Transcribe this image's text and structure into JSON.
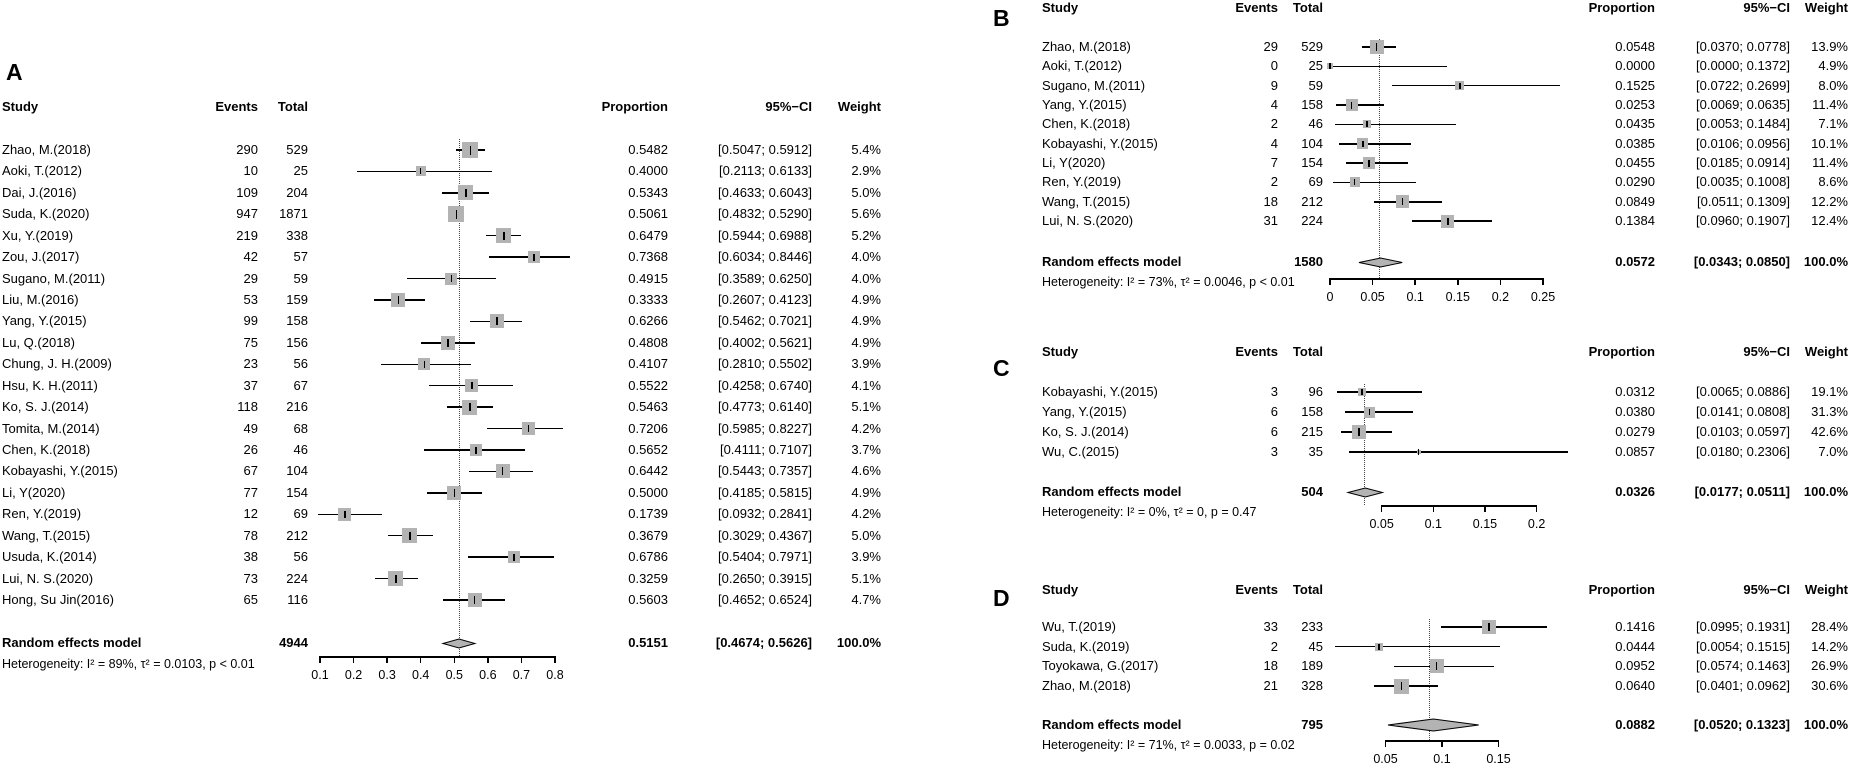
{
  "figure_title": "",
  "colors": {
    "background": "#ffffff",
    "text": "#000000",
    "ci_line": "#000000",
    "weight_square": "#b3b3b3",
    "diamond_fill": "#b3b3b3",
    "diamond_stroke": "#000000",
    "null_line": "#444444"
  },
  "chart_data": [
    {
      "panel": "A",
      "type": "forest",
      "headers": {
        "study": "Study",
        "events": "Events",
        "total": "Total",
        "proportion": "Proportion",
        "ci": "95%−CI",
        "weight": "Weight"
      },
      "studies": [
        {
          "study": "Zhao, M.(2018)",
          "events": 290,
          "total": 529,
          "proportion": 0.5482,
          "ci_low": 0.5047,
          "ci_high": 0.5912,
          "weight": 5.4
        },
        {
          "study": "Aoki, T.(2012)",
          "events": 10,
          "total": 25,
          "proportion": 0.4,
          "ci_low": 0.2113,
          "ci_high": 0.6133,
          "weight": 2.9
        },
        {
          "study": "Dai, J.(2016)",
          "events": 109,
          "total": 204,
          "proportion": 0.5343,
          "ci_low": 0.4633,
          "ci_high": 0.6043,
          "weight": 5.0
        },
        {
          "study": "Suda, K.(2020)",
          "events": 947,
          "total": 1871,
          "proportion": 0.5061,
          "ci_low": 0.4832,
          "ci_high": 0.529,
          "weight": 5.6
        },
        {
          "study": "Xu, Y.(2019)",
          "events": 219,
          "total": 338,
          "proportion": 0.6479,
          "ci_low": 0.5944,
          "ci_high": 0.6988,
          "weight": 5.2
        },
        {
          "study": "Zou, J.(2017)",
          "events": 42,
          "total": 57,
          "proportion": 0.7368,
          "ci_low": 0.6034,
          "ci_high": 0.8446,
          "weight": 4.0
        },
        {
          "study": "Sugano, M.(2011)",
          "events": 29,
          "total": 59,
          "proportion": 0.4915,
          "ci_low": 0.3589,
          "ci_high": 0.625,
          "weight": 4.0
        },
        {
          "study": "Liu, M.(2016)",
          "events": 53,
          "total": 159,
          "proportion": 0.3333,
          "ci_low": 0.2607,
          "ci_high": 0.4123,
          "weight": 4.9
        },
        {
          "study": "Yang, Y.(2015)",
          "events": 99,
          "total": 158,
          "proportion": 0.6266,
          "ci_low": 0.5462,
          "ci_high": 0.7021,
          "weight": 4.9
        },
        {
          "study": "Lu, Q.(2018)",
          "events": 75,
          "total": 156,
          "proportion": 0.4808,
          "ci_low": 0.4002,
          "ci_high": 0.5621,
          "weight": 4.9
        },
        {
          "study": "Chung, J. H.(2009)",
          "events": 23,
          "total": 56,
          "proportion": 0.4107,
          "ci_low": 0.281,
          "ci_high": 0.5502,
          "weight": 3.9
        },
        {
          "study": "Hsu, K. H.(2011)",
          "events": 37,
          "total": 67,
          "proportion": 0.5522,
          "ci_low": 0.4258,
          "ci_high": 0.674,
          "weight": 4.1
        },
        {
          "study": "Ko, S. J.(2014)",
          "events": 118,
          "total": 216,
          "proportion": 0.5463,
          "ci_low": 0.4773,
          "ci_high": 0.614,
          "weight": 5.1
        },
        {
          "study": "Tomita, M.(2014)",
          "events": 49,
          "total": 68,
          "proportion": 0.7206,
          "ci_low": 0.5985,
          "ci_high": 0.8227,
          "weight": 4.2
        },
        {
          "study": "Chen, K.(2018)",
          "events": 26,
          "total": 46,
          "proportion": 0.5652,
          "ci_low": 0.4111,
          "ci_high": 0.7107,
          "weight": 3.7
        },
        {
          "study": "Kobayashi, Y.(2015)",
          "events": 67,
          "total": 104,
          "proportion": 0.6442,
          "ci_low": 0.5443,
          "ci_high": 0.7357,
          "weight": 4.6
        },
        {
          "study": "Li, Y(2020)",
          "events": 77,
          "total": 154,
          "proportion": 0.5,
          "ci_low": 0.4185,
          "ci_high": 0.5815,
          "weight": 4.9
        },
        {
          "study": "Ren, Y.(2019)",
          "events": 12,
          "total": 69,
          "proportion": 0.1739,
          "ci_low": 0.0932,
          "ci_high": 0.2841,
          "weight": 4.2
        },
        {
          "study": "Wang, T.(2015)",
          "events": 78,
          "total": 212,
          "proportion": 0.3679,
          "ci_low": 0.3029,
          "ci_high": 0.4367,
          "weight": 5.0
        },
        {
          "study": "Usuda, K.(2014)",
          "events": 38,
          "total": 56,
          "proportion": 0.6786,
          "ci_low": 0.5404,
          "ci_high": 0.7971,
          "weight": 3.9
        },
        {
          "study": "Lui, N. S.(2020)",
          "events": 73,
          "total": 224,
          "proportion": 0.3259,
          "ci_low": 0.265,
          "ci_high": 0.3915,
          "weight": 5.1
        },
        {
          "study": "Hong, Su Jin(2016)",
          "events": 65,
          "total": 116,
          "proportion": 0.5603,
          "ci_low": 0.4652,
          "ci_high": 0.6524,
          "weight": 4.7
        }
      ],
      "summary": {
        "label": "Random effects model",
        "total": 4944,
        "proportion": 0.5151,
        "ci_low": 0.4674,
        "ci_high": 0.5626,
        "weight": 100.0
      },
      "heterogeneity": "Heterogeneity: I² = 89%, τ² = 0.0103, p < 0.01",
      "axis": {
        "min": 0.1,
        "max": 0.8,
        "ticks": [
          0.1,
          0.2,
          0.3,
          0.4,
          0.5,
          0.6,
          0.7,
          0.8
        ]
      }
    },
    {
      "panel": "B",
      "type": "forest",
      "headers": {
        "study": "Study",
        "events": "Events",
        "total": "Total",
        "proportion": "Proportion",
        "ci": "95%−CI",
        "weight": "Weight"
      },
      "studies": [
        {
          "study": "Zhao, M.(2018)",
          "events": 29,
          "total": 529,
          "proportion": 0.0548,
          "ci_low": 0.037,
          "ci_high": 0.0778,
          "weight": 13.9
        },
        {
          "study": "Aoki, T.(2012)",
          "events": 0,
          "total": 25,
          "proportion": 0.0,
          "ci_low": 0.0,
          "ci_high": 0.1372,
          "weight": 4.9
        },
        {
          "study": "Sugano, M.(2011)",
          "events": 9,
          "total": 59,
          "proportion": 0.1525,
          "ci_low": 0.0722,
          "ci_high": 0.2699,
          "weight": 8.0
        },
        {
          "study": "Yang, Y.(2015)",
          "events": 4,
          "total": 158,
          "proportion": 0.0253,
          "ci_low": 0.0069,
          "ci_high": 0.0635,
          "weight": 11.4
        },
        {
          "study": "Chen, K.(2018)",
          "events": 2,
          "total": 46,
          "proportion": 0.0435,
          "ci_low": 0.0053,
          "ci_high": 0.1484,
          "weight": 7.1
        },
        {
          "study": "Kobayashi, Y.(2015)",
          "events": 4,
          "total": 104,
          "proportion": 0.0385,
          "ci_low": 0.0106,
          "ci_high": 0.0956,
          "weight": 10.1
        },
        {
          "study": "Li, Y(2020)",
          "events": 7,
          "total": 154,
          "proportion": 0.0455,
          "ci_low": 0.0185,
          "ci_high": 0.0914,
          "weight": 11.4
        },
        {
          "study": "Ren, Y.(2019)",
          "events": 2,
          "total": 69,
          "proportion": 0.029,
          "ci_low": 0.0035,
          "ci_high": 0.1008,
          "weight": 8.6
        },
        {
          "study": "Wang, T.(2015)",
          "events": 18,
          "total": 212,
          "proportion": 0.0849,
          "ci_low": 0.0511,
          "ci_high": 0.1309,
          "weight": 12.2
        },
        {
          "study": "Lui, N. S.(2020)",
          "events": 31,
          "total": 224,
          "proportion": 0.1384,
          "ci_low": 0.096,
          "ci_high": 0.1907,
          "weight": 12.4
        }
      ],
      "summary": {
        "label": "Random effects model",
        "total": 1580,
        "proportion": 0.0572,
        "ci_low": 0.0343,
        "ci_high": 0.085,
        "weight": 100.0
      },
      "heterogeneity": "Heterogeneity: I² = 73%, τ² = 0.0046, p < 0.01",
      "axis": {
        "min": 0,
        "max": 0.25,
        "ticks": [
          0,
          0.05,
          0.1,
          0.15,
          0.2,
          0.25
        ]
      }
    },
    {
      "panel": "C",
      "type": "forest",
      "headers": {
        "study": "Study",
        "events": "Events",
        "total": "Total",
        "proportion": "Proportion",
        "ci": "95%−CI",
        "weight": "Weight"
      },
      "studies": [
        {
          "study": "Kobayashi, Y.(2015)",
          "events": 3,
          "total": 96,
          "proportion": 0.0312,
          "ci_low": 0.0065,
          "ci_high": 0.0886,
          "weight": 19.1
        },
        {
          "study": "Yang, Y.(2015)",
          "events": 6,
          "total": 158,
          "proportion": 0.038,
          "ci_low": 0.0141,
          "ci_high": 0.0808,
          "weight": 31.3
        },
        {
          "study": "Ko, S. J.(2014)",
          "events": 6,
          "total": 215,
          "proportion": 0.0279,
          "ci_low": 0.0103,
          "ci_high": 0.0597,
          "weight": 42.6
        },
        {
          "study": "Wu, C.(2015)",
          "events": 3,
          "total": 35,
          "proportion": 0.0857,
          "ci_low": 0.018,
          "ci_high": 0.2306,
          "weight": 7.0
        }
      ],
      "summary": {
        "label": "Random effects model",
        "total": 504,
        "proportion": 0.0326,
        "ci_low": 0.0177,
        "ci_high": 0.0511,
        "weight": 100.0
      },
      "heterogeneity": "Heterogeneity: I² = 0%, τ² = 0, p = 0.47",
      "axis": {
        "min": 0,
        "max": 0.2,
        "ticks": [
          0.05,
          0.1,
          0.15,
          0.2
        ]
      }
    },
    {
      "panel": "D",
      "type": "forest",
      "headers": {
        "study": "Study",
        "events": "Events",
        "total": "Total",
        "proportion": "Proportion",
        "ci": "95%−CI",
        "weight": "Weight"
      },
      "studies": [
        {
          "study": "Wu, T.(2019)",
          "events": 33,
          "total": 233,
          "proportion": 0.1416,
          "ci_low": 0.0995,
          "ci_high": 0.1931,
          "weight": 28.4
        },
        {
          "study": "Suda, K.(2019)",
          "events": 2,
          "total": 45,
          "proportion": 0.0444,
          "ci_low": 0.0054,
          "ci_high": 0.1515,
          "weight": 14.2
        },
        {
          "study": "Toyokawa, G.(2017)",
          "events": 18,
          "total": 189,
          "proportion": 0.0952,
          "ci_low": 0.0574,
          "ci_high": 0.1463,
          "weight": 26.9
        },
        {
          "study": "Zhao, M.(2018)",
          "events": 21,
          "total": 328,
          "proportion": 0.064,
          "ci_low": 0.0401,
          "ci_high": 0.0962,
          "weight": 30.6
        }
      ],
      "summary": {
        "label": "Random effects model",
        "total": 795,
        "proportion": 0.0882,
        "ci_low": 0.052,
        "ci_high": 0.1323,
        "weight": 100.0
      },
      "heterogeneity": "Heterogeneity: I² = 71%, τ² = 0.0033, p = 0.02",
      "axis": {
        "min": 0,
        "max": 0.15,
        "ticks": [
          0.05,
          0.1,
          0.15
        ]
      }
    }
  ]
}
